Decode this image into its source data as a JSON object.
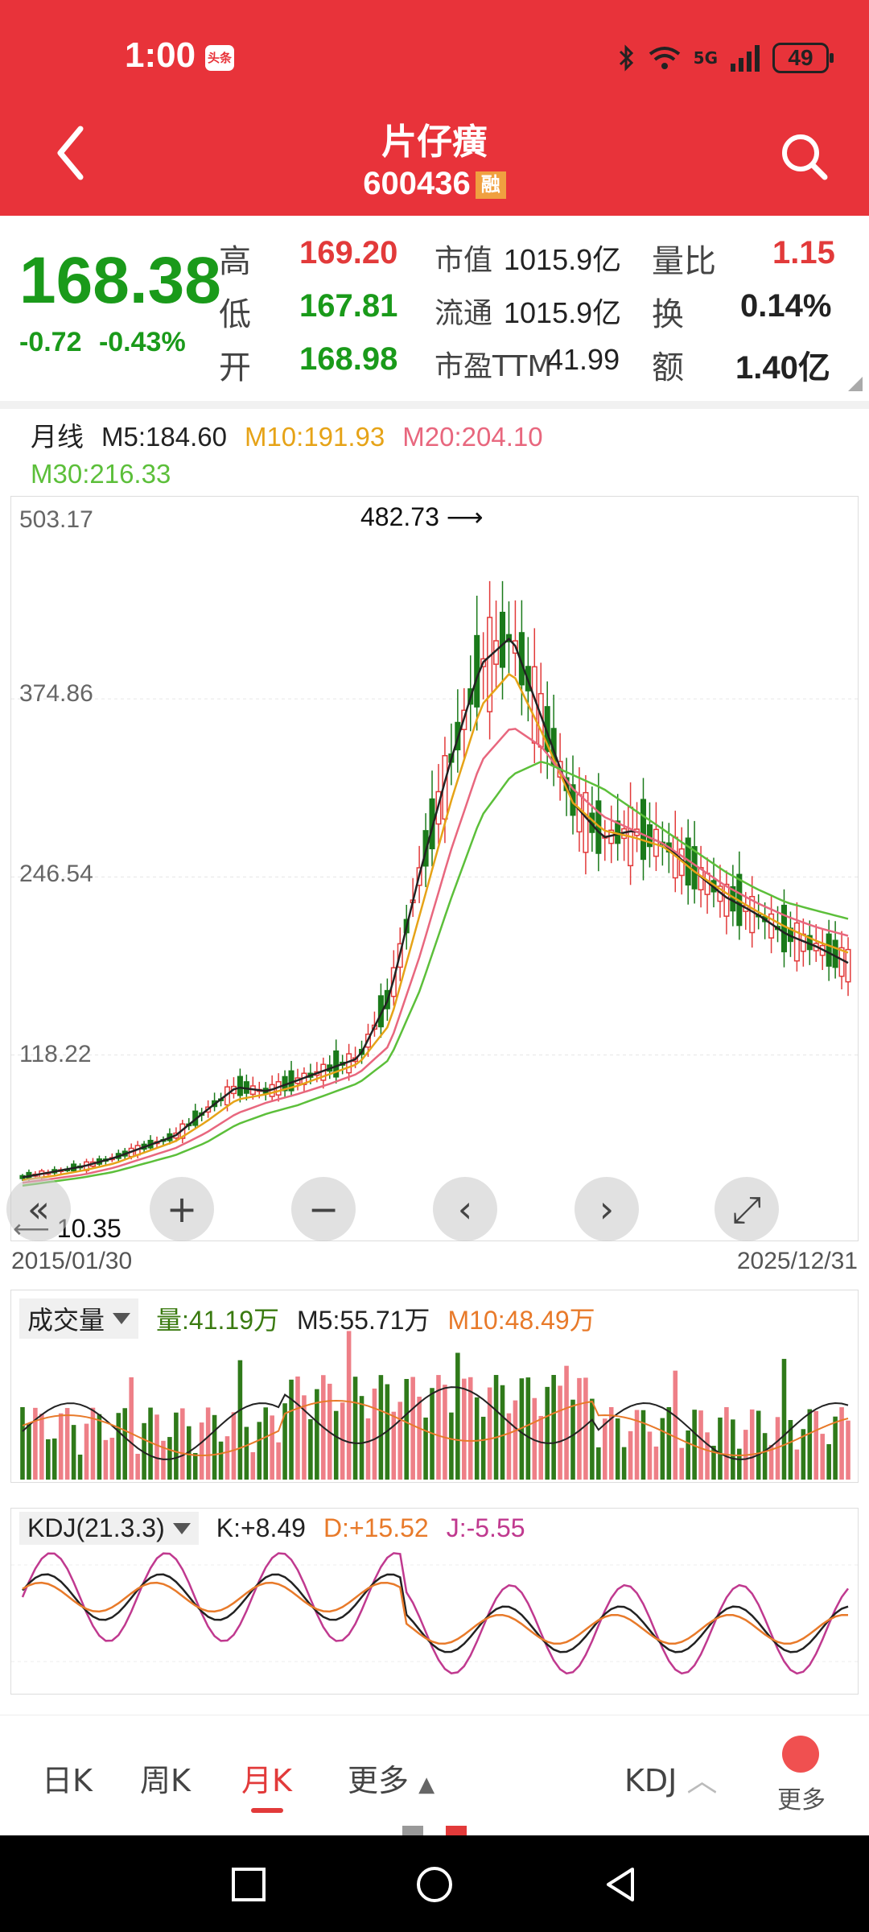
{
  "status_bar": {
    "time": "1:00",
    "app_badge": "头条",
    "network": "5G",
    "battery": "49"
  },
  "header": {
    "title": "片仔癀",
    "code": "600436",
    "margin_badge": "融"
  },
  "quote": {
    "price": "168.38",
    "change": "-0.72",
    "change_pct": "-0.43%",
    "high_label": "高",
    "high": "169.20",
    "low_label": "低",
    "low": "167.81",
    "open_label": "开",
    "open": "168.98",
    "mcap_label": "市值",
    "mcap": "1015.9亿",
    "float_label": "流通",
    "float": "1015.9亿",
    "pe_label": "市盈TTM",
    "pe": "41.99",
    "vol_ratio_label": "量比",
    "vol_ratio": "1.15",
    "turnover_label": "换",
    "turnover": "0.14%",
    "amount_label": "额",
    "amount": "1.40亿"
  },
  "legend": {
    "period": "月线",
    "m5": "M5:184.60",
    "m10": "M10:191.93",
    "m20": "M20:204.10",
    "m30": "M30:216.33"
  },
  "colors": {
    "up": "#e23a3a",
    "down": "#1a7a1a",
    "m5": "#222222",
    "m10": "#e6a317",
    "m20": "#e8677e",
    "m30": "#5cbf3a"
  },
  "chart_data": [
    {
      "type": "candlestick",
      "title": "",
      "yticks": [
        "503.17",
        "374.86",
        "246.54",
        "118.22"
      ],
      "ylim": [
        10,
        503.17
      ],
      "x_start": "2015/01/30",
      "x_end": "2025/12/31",
      "annotations": {
        "max": "482.73",
        "min": "10.35"
      },
      "series": [
        {
          "name": "M5",
          "values": [
            30,
            34,
            38,
            44,
            52,
            60,
            78,
            95,
            92,
            100,
            108,
            116,
            160,
            250,
            330,
            400,
            420,
            360,
            300,
            275,
            280,
            270,
            250,
            232,
            220,
            205,
            196,
            184.6
          ]
        },
        {
          "name": "M10",
          "values": [
            28,
            31,
            35,
            40,
            48,
            56,
            70,
            86,
            90,
            96,
            104,
            112,
            140,
            220,
            300,
            370,
            395,
            350,
            300,
            280,
            275,
            268,
            250,
            235,
            222,
            210,
            200,
            191.93
          ]
        },
        {
          "name": "M20",
          "values": [
            26,
            29,
            32,
            37,
            44,
            51,
            62,
            76,
            84,
            90,
            97,
            105,
            125,
            190,
            265,
            330,
            355,
            340,
            310,
            290,
            280,
            270,
            255,
            240,
            228,
            218,
            210,
            204.1
          ]
        },
        {
          "name": "M30",
          "values": [
            24,
            27,
            30,
            34,
            40,
            46,
            55,
            68,
            76,
            82,
            90,
            98,
            115,
            165,
            230,
            290,
            320,
            330,
            320,
            310,
            295,
            280,
            265,
            250,
            238,
            228,
            222,
            216.33
          ]
        }
      ]
    },
    {
      "type": "bar",
      "title": "成交量",
      "series": [
        {
          "name": "量",
          "values": [
            41.19
          ]
        },
        {
          "name": "M5",
          "values": [
            55.71
          ]
        },
        {
          "name": "M10",
          "values": [
            48.49
          ]
        }
      ]
    },
    {
      "type": "line",
      "title": "KDJ(21.3.3)",
      "series": [
        {
          "name": "K",
          "values": [
            8.49
          ]
        },
        {
          "name": "D",
          "values": [
            15.52
          ]
        },
        {
          "name": "J",
          "values": [
            -5.55
          ]
        }
      ]
    }
  ],
  "volume_panel": {
    "label": "成交量",
    "vol": "量:41.19万",
    "m5": "M5:55.71万",
    "m10": "M10:48.49万"
  },
  "kdj_panel": {
    "label": "KDJ(21.3.3)",
    "k": "K:+8.49",
    "d": "D:+15.52",
    "j": "J:-5.55"
  },
  "tabs": {
    "day": "日K",
    "week": "周K",
    "month": "月K",
    "more": "更多",
    "indicator": "KDJ",
    "more2": "更多"
  }
}
